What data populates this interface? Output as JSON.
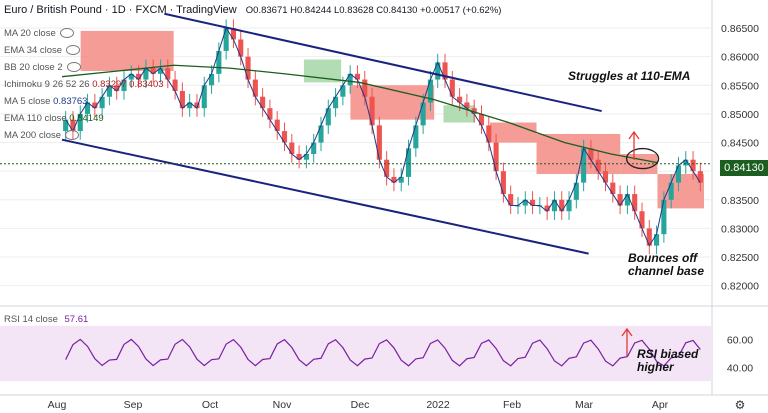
{
  "header": {
    "title": "Euro / British Pound · 1D · FXCM · TradingView",
    "values": "O0.83671 H0.84244 L0.83628 C0.84130 +0.00517 (+0.62%)",
    "change_color": "#26a69a"
  },
  "legend": [
    {
      "label": "MA 20 close",
      "value": "",
      "color": "#777777"
    },
    {
      "label": "EMA 34 close",
      "value": "",
      "color": "#777777"
    },
    {
      "label": "BB 20 close 2",
      "value": "",
      "color": "#777777"
    },
    {
      "label": "Ichimoku 9 26 52 26",
      "value": "0.83297 0.83403",
      "color": "#b22222"
    },
    {
      "label": "MA 5 close",
      "value": "0.83763",
      "color": "#1e3a8a"
    },
    {
      "label": "EMA 110 close",
      "value": "0.84149",
      "color": "#1b5e20"
    },
    {
      "label": "MA 200 close",
      "value": "",
      "color": "#777777"
    }
  ],
  "annotations": {
    "struggles": "Struggles at 110-EMA",
    "bounces_line1": "Bounces off",
    "bounces_line2": "channel base",
    "rsi_line1": "RSI biased",
    "rsi_line2": "higher"
  },
  "price_label": "0.84130",
  "price_label_color": "#1b5e20",
  "rsi_legend": {
    "label": "RSI 14 close",
    "value": "57.61"
  },
  "colors": {
    "bull": "#26a69a",
    "bear": "#ef5350",
    "cloud_bear": "#f28b82",
    "cloud_bull": "#a5d6a7",
    "ema110": "#1b5e20",
    "ma5": "#1e3a8a",
    "channel": "#1a237e",
    "rsi": "#7b1fa2",
    "rsi_bg": "#f3e5f5",
    "grid": "#eeeeee"
  },
  "chart_data": {
    "type": "candlestick",
    "x_ticks": [
      "Aug",
      "Sep",
      "Oct",
      "Nov",
      "Dec",
      "2022",
      "Feb",
      "Mar",
      "Apr"
    ],
    "y_ticks": [
      0.865,
      0.86,
      0.855,
      0.85,
      0.845,
      0.84,
      0.835,
      0.83,
      0.825,
      0.82
    ],
    "ylim": [
      0.8175,
      0.8685
    ],
    "rsi_ticks": [
      60.0,
      40.0
    ],
    "rsi_ylim": [
      25,
      80
    ],
    "series": [
      {
        "name": "EMA 110 close",
        "points": [
          [
            0,
            0.8565
          ],
          [
            30,
            0.8575
          ],
          [
            60,
            0.8585
          ],
          [
            90,
            0.858
          ],
          [
            120,
            0.857
          ],
          [
            160,
            0.8555
          ],
          [
            200,
            0.8525
          ],
          [
            240,
            0.8485
          ],
          [
            270,
            0.845
          ],
          [
            295,
            0.843
          ],
          [
            320,
            0.8415
          ]
        ]
      },
      {
        "name": "Channel upper",
        "points": [
          [
            55,
            0.8675
          ],
          [
            290,
            0.8505
          ]
        ]
      },
      {
        "name": "Channel lower",
        "points": [
          [
            0,
            0.8455
          ],
          [
            283,
            0.8256
          ]
        ]
      }
    ],
    "cloud": [
      {
        "x0": 10,
        "x1": 60,
        "top": 0.8645,
        "bottom": 0.8575,
        "kind": "bear"
      },
      {
        "x0": 130,
        "x1": 150,
        "top": 0.8595,
        "bottom": 0.8555,
        "kind": "bull"
      },
      {
        "x0": 155,
        "x1": 200,
        "top": 0.855,
        "bottom": 0.849,
        "kind": "bear"
      },
      {
        "x0": 205,
        "x1": 222,
        "top": 0.8515,
        "bottom": 0.8485,
        "kind": "bull"
      },
      {
        "x0": 230,
        "x1": 255,
        "top": 0.8485,
        "bottom": 0.845,
        "kind": "bear"
      },
      {
        "x0": 255,
        "x1": 300,
        "top": 0.8465,
        "bottom": 0.8395,
        "kind": "bear"
      },
      {
        "x0": 300,
        "x1": 320,
        "top": 0.843,
        "bottom": 0.8395,
        "kind": "bear"
      },
      {
        "x0": 320,
        "x1": 345,
        "top": 0.8395,
        "bottom": 0.8335,
        "kind": "bear"
      }
    ],
    "candles_closes": [
      0.849,
      0.847,
      0.85,
      0.852,
      0.851,
      0.853,
      0.855,
      0.854,
      0.856,
      0.857,
      0.856,
      0.858,
      0.857,
      0.858,
      0.856,
      0.854,
      0.851,
      0.852,
      0.851,
      0.855,
      0.857,
      0.861,
      0.865,
      0.863,
      0.86,
      0.856,
      0.853,
      0.851,
      0.849,
      0.847,
      0.845,
      0.843,
      0.842,
      0.843,
      0.845,
      0.848,
      0.851,
      0.853,
      0.855,
      0.857,
      0.856,
      0.853,
      0.848,
      0.842,
      0.839,
      0.838,
      0.839,
      0.844,
      0.848,
      0.852,
      0.856,
      0.859,
      0.856,
      0.853,
      0.852,
      0.851,
      0.85,
      0.848,
      0.845,
      0.84,
      0.836,
      0.834,
      0.834,
      0.835,
      0.834,
      0.834,
      0.833,
      0.835,
      0.833,
      0.835,
      0.838,
      0.844,
      0.842,
      0.84,
      0.838,
      0.836,
      0.834,
      0.836,
      0.833,
      0.83,
      0.827,
      0.829,
      0.835,
      0.838,
      0.841,
      0.842,
      0.84,
      0.838
    ]
  }
}
